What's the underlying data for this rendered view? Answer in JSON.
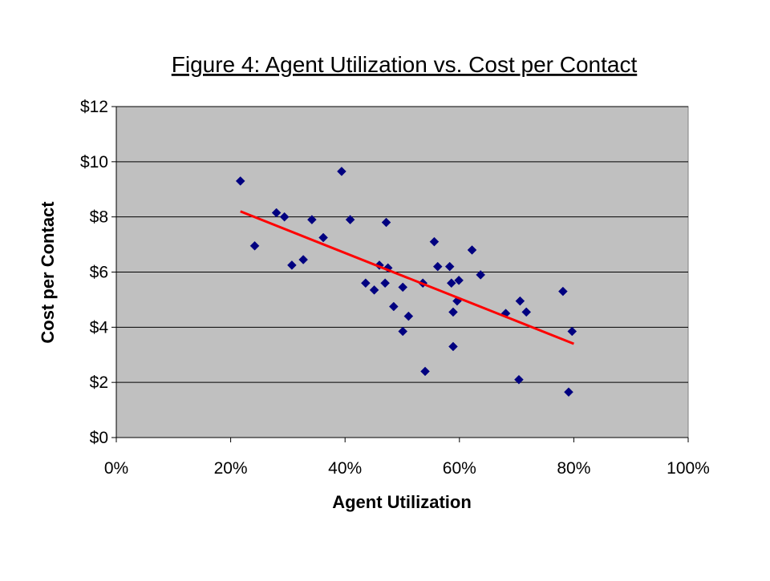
{
  "chart_data": {
    "type": "scatter",
    "title": "Figure 4: Agent Utilization vs. Cost per Contact",
    "xlabel": "Agent Utilization",
    "ylabel": "Cost per Contact",
    "xlim": [
      0,
      100
    ],
    "ylim": [
      0,
      12
    ],
    "x_ticks": [
      0,
      20,
      40,
      60,
      80,
      100
    ],
    "x_tick_labels": [
      "0%",
      "20%",
      "40%",
      "60%",
      "80%",
      "100%"
    ],
    "y_ticks": [
      0,
      2,
      4,
      6,
      8,
      10,
      12
    ],
    "y_tick_labels": [
      "$0",
      "$2",
      "$4",
      "$6",
      "$8",
      "$10",
      "$12"
    ],
    "grid": "horizontal",
    "legend": "none",
    "colors": {
      "plot_background": "#c0c0c0",
      "point": "#000080",
      "trendline": "#ff0000",
      "gridline": "#000000"
    },
    "series": [
      {
        "marker": "diamond",
        "points": [
          {
            "x": 21.7,
            "y": 9.3
          },
          {
            "x": 24.2,
            "y": 6.95
          },
          {
            "x": 28.0,
            "y": 8.15
          },
          {
            "x": 29.4,
            "y": 8.0
          },
          {
            "x": 30.7,
            "y": 6.25
          },
          {
            "x": 32.7,
            "y": 6.45
          },
          {
            "x": 34.2,
            "y": 7.9
          },
          {
            "x": 36.2,
            "y": 7.25
          },
          {
            "x": 39.4,
            "y": 9.65
          },
          {
            "x": 40.9,
            "y": 7.9
          },
          {
            "x": 43.6,
            "y": 5.6
          },
          {
            "x": 45.1,
            "y": 5.35
          },
          {
            "x": 46.0,
            "y": 6.25
          },
          {
            "x": 47.0,
            "y": 5.6
          },
          {
            "x": 47.2,
            "y": 7.8
          },
          {
            "x": 47.5,
            "y": 6.15
          },
          {
            "x": 48.5,
            "y": 4.75
          },
          {
            "x": 50.1,
            "y": 5.45
          },
          {
            "x": 50.1,
            "y": 3.85
          },
          {
            "x": 51.1,
            "y": 4.4
          },
          {
            "x": 53.6,
            "y": 5.6
          },
          {
            "x": 54.0,
            "y": 2.4
          },
          {
            "x": 55.6,
            "y": 7.1
          },
          {
            "x": 56.2,
            "y": 6.2
          },
          {
            "x": 58.3,
            "y": 6.2
          },
          {
            "x": 58.6,
            "y": 5.6
          },
          {
            "x": 58.9,
            "y": 4.55
          },
          {
            "x": 58.9,
            "y": 3.3
          },
          {
            "x": 59.6,
            "y": 4.95
          },
          {
            "x": 59.9,
            "y": 5.7
          },
          {
            "x": 62.2,
            "y": 6.8
          },
          {
            "x": 63.7,
            "y": 5.9
          },
          {
            "x": 68.1,
            "y": 4.5
          },
          {
            "x": 70.4,
            "y": 2.1
          },
          {
            "x": 70.6,
            "y": 4.95
          },
          {
            "x": 71.7,
            "y": 4.55
          },
          {
            "x": 78.1,
            "y": 5.3
          },
          {
            "x": 79.1,
            "y": 1.65
          },
          {
            "x": 79.7,
            "y": 3.85
          }
        ]
      }
    ],
    "trendline": {
      "type": "linear",
      "x": [
        21.7,
        80.0
      ],
      "y": [
        8.2,
        3.4
      ]
    }
  }
}
